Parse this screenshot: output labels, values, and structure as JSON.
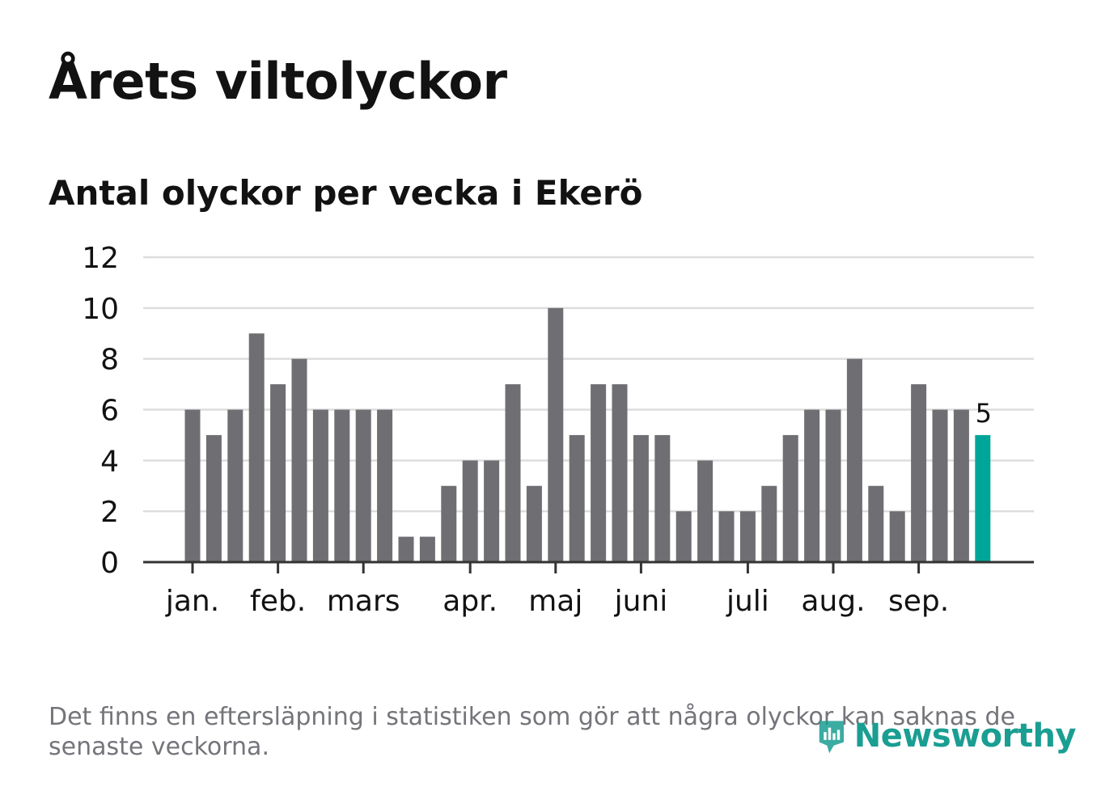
{
  "header": {
    "title": "Årets viltolyckor",
    "subtitle": "Antal olyckor per vecka i Ekerö"
  },
  "footer": {
    "note": "Det finns en eftersläpning i statistiken som gör att några olyckor kan saknas de senaste veckorna.",
    "logo_text": "Newsworthy"
  },
  "colors": {
    "bar": "#6f6e73",
    "highlight": "#00a59a",
    "grid": "#dddddd",
    "axis": "#333333",
    "text": "#121212",
    "note": "#74757a",
    "logo": "#1a9e92"
  },
  "chart_data": {
    "type": "bar",
    "title": "Antal olyckor per vecka i Ekerö",
    "xlabel": "",
    "ylabel": "",
    "ylim": [
      0,
      12
    ],
    "yticks": [
      0,
      2,
      4,
      6,
      8,
      10,
      12
    ],
    "grid": true,
    "values": [
      6,
      5,
      6,
      9,
      7,
      8,
      6,
      6,
      6,
      6,
      1,
      1,
      3,
      4,
      4,
      7,
      3,
      10,
      5,
      7,
      7,
      5,
      5,
      2,
      4,
      2,
      2,
      3,
      5,
      6,
      6,
      8,
      3,
      2,
      7,
      6,
      6,
      5
    ],
    "highlight_index": 37,
    "highlight_label": "5",
    "months": [
      {
        "label": "jan.",
        "week_index": 0.5
      },
      {
        "label": "feb.",
        "week_index": 4.5
      },
      {
        "label": "mars",
        "week_index": 8.5
      },
      {
        "label": "apr.",
        "week_index": 13.5
      },
      {
        "label": "maj",
        "week_index": 17.5
      },
      {
        "label": "juni",
        "week_index": 21.5
      },
      {
        "label": "juli",
        "week_index": 26.5
      },
      {
        "label": "aug.",
        "week_index": 30.5
      },
      {
        "label": "sep.",
        "week_index": 34.5
      }
    ]
  }
}
